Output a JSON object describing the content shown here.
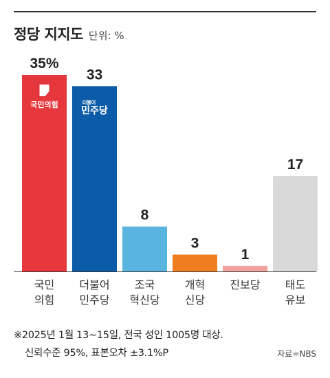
{
  "header": {
    "title": "정당 지지도",
    "unit": "단위: %"
  },
  "chart_data": {
    "type": "bar",
    "title": "정당 지지도",
    "unit": "%",
    "categories": [
      [
        "국민",
        "의힘"
      ],
      [
        "더불어",
        "민주당"
      ],
      [
        "조국",
        "혁신당"
      ],
      [
        "개혁",
        "신당"
      ],
      [
        "진보당"
      ],
      [
        "태도",
        "유보"
      ]
    ],
    "value_labels": [
      "35%",
      "33",
      "8",
      "3",
      "1",
      "17"
    ],
    "values": [
      35,
      33,
      8,
      3,
      1,
      17
    ],
    "colors": [
      "#e5373c",
      "#0b5ba8",
      "#5ab4e0",
      "#f07d1f",
      "#f0a1a0",
      "#d9d9d9"
    ],
    "logos": [
      {
        "index": 0,
        "text": "국민의힘"
      },
      {
        "index": 1,
        "text": "민주당",
        "small_text": "더불어"
      }
    ]
  },
  "footnote": {
    "line1": "※2025년 1월 13~15일, 전국 성인 1005명 대상.",
    "line2": "신뢰수준 95%, 표본오차 ±3.1%P"
  },
  "source": "자료=NBS"
}
